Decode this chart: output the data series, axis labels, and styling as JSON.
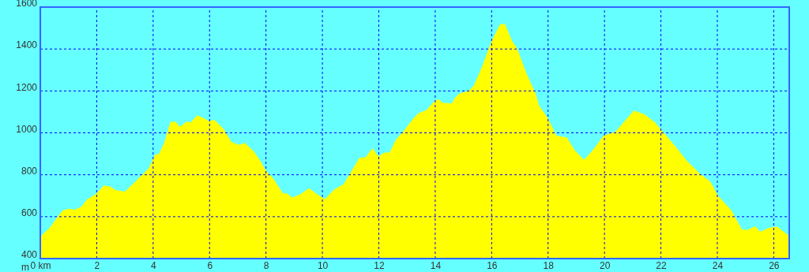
{
  "chart_data": {
    "type": "area",
    "ylabel": "m",
    "color": "#ffff00",
    "grid": true,
    "x": [
      0,
      0.34,
      0.57,
      0.8,
      1.04,
      1.22,
      1.46,
      1.64,
      2.0,
      2.25,
      2.48,
      2.67,
      3.0,
      3.32,
      3.6,
      3.84,
      4.07,
      4.21,
      4.4,
      4.61,
      4.8,
      4.94,
      5.19,
      5.33,
      5.56,
      5.71,
      5.98,
      6.17,
      6.5,
      6.78,
      7.06,
      7.25,
      7.57,
      7.81,
      7.99,
      8.27,
      8.6,
      8.74,
      8.93,
      9.21,
      9.53,
      9.77,
      10.09,
      10.42,
      10.75,
      11.03,
      11.31,
      11.54,
      11.77,
      11.99,
      12.19,
      12.38,
      12.61,
      12.89,
      13.22,
      13.41,
      13.69,
      14.01,
      14.15,
      14.25,
      14.58,
      14.7,
      14.86,
      15.18,
      15.37,
      15.65,
      15.98,
      16.3,
      16.47,
      16.72,
      16.91,
      17.24,
      17.56,
      17.68,
      18.0,
      18.29,
      18.66,
      18.94,
      19.27,
      19.55,
      19.97,
      20.39,
      21.04,
      21.42,
      21.79,
      22.07,
      22.54,
      22.91,
      23.38,
      23.75,
      24.03,
      24.5,
      24.87,
      25.06,
      25.34,
      25.52,
      25.85,
      26.13,
      26.32,
      26.53
    ],
    "values": [
      504,
      548,
      592,
      630,
      638,
      633,
      648,
      680,
      711,
      749,
      743,
      727,
      720,
      761,
      799,
      830,
      896,
      899,
      956,
      1052,
      1054,
      1029,
      1054,
      1050,
      1084,
      1075,
      1056,
      1062,
      1018,
      956,
      943,
      952,
      912,
      865,
      821,
      780,
      711,
      711,
      692,
      707,
      736,
      711,
      684,
      730,
      755,
      818,
      881,
      884,
      927,
      887,
      906,
      906,
      968,
      1010,
      1069,
      1094,
      1109,
      1157,
      1159,
      1144,
      1140,
      1167,
      1188,
      1200,
      1226,
      1313,
      1433,
      1518,
      1520,
      1439,
      1401,
      1282,
      1188,
      1131,
      1069,
      987,
      978,
      918,
      871,
      912,
      987,
      1006,
      1106,
      1088,
      1050,
      1006,
      931,
      868,
      805,
      768,
      699,
      630,
      539,
      536,
      554,
      529,
      548,
      552,
      532,
      510
    ],
    "xlim": [
      0,
      26.55
    ],
    "xticks": [
      {
        "value": 0,
        "label": "0 km"
      },
      2,
      4,
      6,
      8,
      10,
      12,
      14,
      16,
      18,
      20,
      22,
      24,
      26
    ],
    "ylim": [
      400,
      1600
    ],
    "yticks": [
      400,
      600,
      800,
      1000,
      1200,
      1400,
      1600
    ]
  }
}
